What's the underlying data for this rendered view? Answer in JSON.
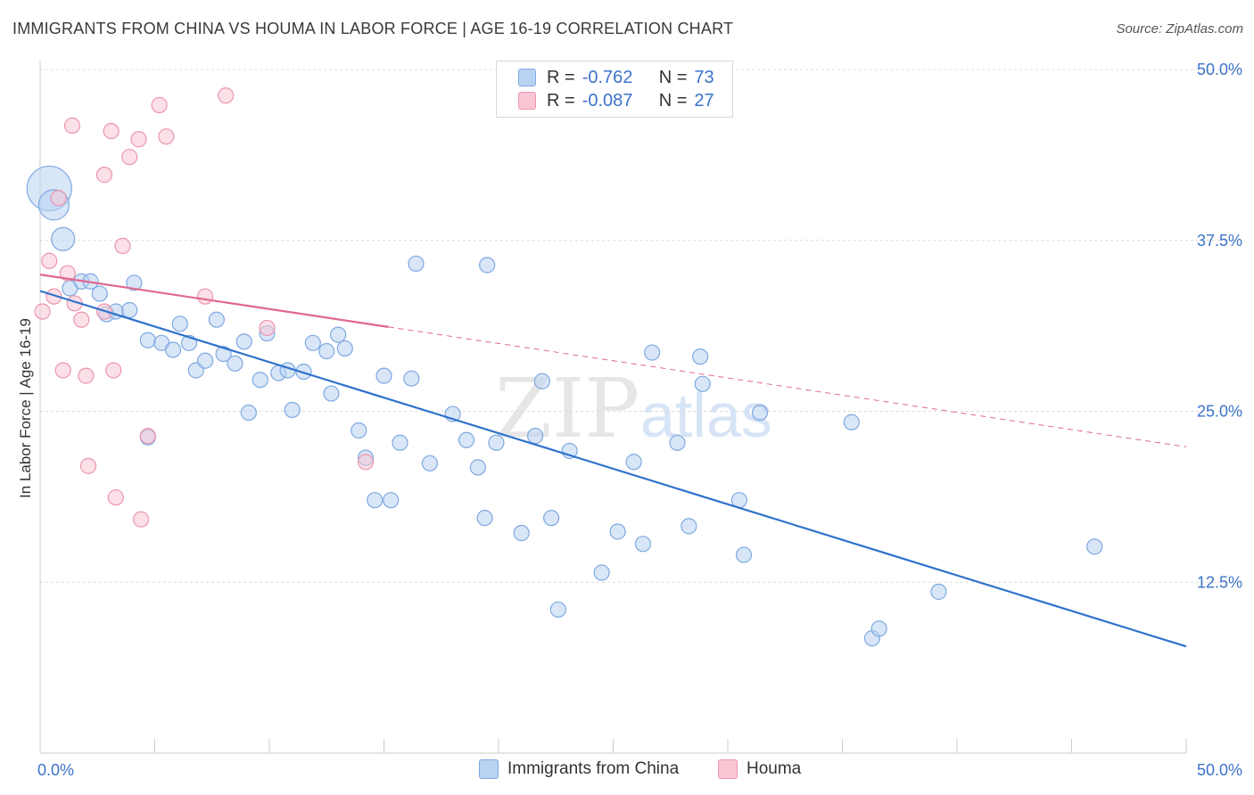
{
  "title": "IMMIGRANTS FROM CHINA VS HOUMA IN LABOR FORCE | AGE 16-19 CORRELATION CHART",
  "source": "Source: ZipAtlas.com",
  "watermark": {
    "zip": "ZIP",
    "atlas": "atlas"
  },
  "legend": {
    "r_label": "R =",
    "n_label": "N =",
    "rows": [
      {
        "name": "Immigrants from China",
        "r": "-0.762",
        "n": "73",
        "color": "#b8d2f2",
        "edge": "#7fa9e0"
      },
      {
        "name": "Houma",
        "r": "-0.087",
        "n": "27",
        "color": "#f9c6d4",
        "edge": "#ec95ae"
      }
    ]
  },
  "chart_data": {
    "type": "scatter",
    "title": "IMMIGRANTS FROM CHINA VS HOUMA IN LABOR FORCE | AGE 16-19 CORRELATION CHART",
    "xlabel": "",
    "ylabel": "In Labor Force | Age 16-19",
    "xlim": [
      0,
      50
    ],
    "ylim": [
      0,
      50
    ],
    "x_tick_labels": [
      "0.0%",
      "50.0%"
    ],
    "y_ticks": [
      12.5,
      25.0,
      37.5,
      50.0
    ],
    "y_tick_labels": [
      "12.5%",
      "25.0%",
      "37.5%",
      "50.0%"
    ],
    "grid": true,
    "series": [
      {
        "name": "Immigrants from China",
        "color": "#b8d2f2",
        "edge": "#7fa9e0",
        "line_color": "#2f72cc",
        "trend": {
          "x": [
            0,
            50
          ],
          "y": [
            33.8,
            7.8
          ],
          "dashed_from": null
        },
        "points": [
          {
            "x": 0.4,
            "y": 41.3,
            "big": 2
          },
          {
            "x": 0.6,
            "y": 40.1,
            "big": 1
          },
          {
            "x": 1.0,
            "y": 37.6,
            "big": 0.5
          },
          {
            "x": 1.3,
            "y": 34.0
          },
          {
            "x": 1.8,
            "y": 34.5
          },
          {
            "x": 2.2,
            "y": 34.5
          },
          {
            "x": 2.6,
            "y": 33.6
          },
          {
            "x": 2.9,
            "y": 32.1
          },
          {
            "x": 3.3,
            "y": 32.3
          },
          {
            "x": 3.9,
            "y": 32.4
          },
          {
            "x": 4.1,
            "y": 34.4
          },
          {
            "x": 4.7,
            "y": 30.2
          },
          {
            "x": 5.3,
            "y": 30.0
          },
          {
            "x": 5.8,
            "y": 29.5
          },
          {
            "x": 6.1,
            "y": 31.4
          },
          {
            "x": 6.5,
            "y": 30.0
          },
          {
            "x": 6.8,
            "y": 28.0
          },
          {
            "x": 7.2,
            "y": 28.7
          },
          {
            "x": 7.7,
            "y": 31.7
          },
          {
            "x": 8.0,
            "y": 29.2
          },
          {
            "x": 8.5,
            "y": 28.5
          },
          {
            "x": 8.9,
            "y": 30.1
          },
          {
            "x": 9.1,
            "y": 24.9
          },
          {
            "x": 9.6,
            "y": 27.3
          },
          {
            "x": 9.9,
            "y": 30.7
          },
          {
            "x": 10.4,
            "y": 27.8
          },
          {
            "x": 10.8,
            "y": 28.0
          },
          {
            "x": 11.0,
            "y": 25.1
          },
          {
            "x": 11.5,
            "y": 27.9
          },
          {
            "x": 11.9,
            "y": 30.0
          },
          {
            "x": 12.5,
            "y": 29.4
          },
          {
            "x": 12.7,
            "y": 26.3
          },
          {
            "x": 13.0,
            "y": 30.6
          },
          {
            "x": 13.3,
            "y": 29.6
          },
          {
            "x": 13.9,
            "y": 23.6
          },
          {
            "x": 14.2,
            "y": 21.6
          },
          {
            "x": 14.6,
            "y": 18.5
          },
          {
            "x": 15.0,
            "y": 27.6
          },
          {
            "x": 15.3,
            "y": 18.5
          },
          {
            "x": 15.7,
            "y": 22.7
          },
          {
            "x": 16.2,
            "y": 27.4
          },
          {
            "x": 16.4,
            "y": 35.8
          },
          {
            "x": 17.0,
            "y": 21.2
          },
          {
            "x": 18.0,
            "y": 24.8
          },
          {
            "x": 18.6,
            "y": 22.9
          },
          {
            "x": 19.1,
            "y": 20.9
          },
          {
            "x": 19.4,
            "y": 17.2
          },
          {
            "x": 19.5,
            "y": 35.7
          },
          {
            "x": 19.9,
            "y": 22.7
          },
          {
            "x": 21.0,
            "y": 16.1
          },
          {
            "x": 21.6,
            "y": 23.2
          },
          {
            "x": 21.9,
            "y": 27.2
          },
          {
            "x": 22.3,
            "y": 17.2
          },
          {
            "x": 22.6,
            "y": 10.5
          },
          {
            "x": 23.1,
            "y": 22.1
          },
          {
            "x": 24.5,
            "y": 13.2
          },
          {
            "x": 25.2,
            "y": 16.2
          },
          {
            "x": 25.9,
            "y": 21.3
          },
          {
            "x": 26.3,
            "y": 15.3
          },
          {
            "x": 26.7,
            "y": 29.3
          },
          {
            "x": 27.8,
            "y": 22.7
          },
          {
            "x": 28.3,
            "y": 16.6
          },
          {
            "x": 28.8,
            "y": 29.0
          },
          {
            "x": 28.9,
            "y": 27.0
          },
          {
            "x": 30.5,
            "y": 18.5
          },
          {
            "x": 30.7,
            "y": 14.5
          },
          {
            "x": 31.4,
            "y": 24.9
          },
          {
            "x": 35.4,
            "y": 24.2
          },
          {
            "x": 36.3,
            "y": 8.4
          },
          {
            "x": 36.6,
            "y": 9.1
          },
          {
            "x": 39.2,
            "y": 11.8
          },
          {
            "x": 46.0,
            "y": 15.1
          },
          {
            "x": 4.7,
            "y": 23.1
          }
        ]
      },
      {
        "name": "Houma",
        "color": "#f9c6d4",
        "edge": "#ec95ae",
        "line_color": "#e0688f",
        "trend": {
          "x": [
            0,
            50
          ],
          "y": [
            35.0,
            22.4
          ],
          "dashed_from": 15.2
        },
        "points": [
          {
            "x": 0.1,
            "y": 32.3
          },
          {
            "x": 0.4,
            "y": 36.0
          },
          {
            "x": 0.6,
            "y": 33.4
          },
          {
            "x": 0.8,
            "y": 40.6
          },
          {
            "x": 1.0,
            "y": 28.0
          },
          {
            "x": 1.2,
            "y": 35.1
          },
          {
            "x": 1.4,
            "y": 45.9
          },
          {
            "x": 1.5,
            "y": 32.9
          },
          {
            "x": 1.8,
            "y": 31.7
          },
          {
            "x": 2.0,
            "y": 27.6
          },
          {
            "x": 2.1,
            "y": 21.0
          },
          {
            "x": 2.8,
            "y": 32.3
          },
          {
            "x": 2.8,
            "y": 42.3
          },
          {
            "x": 3.1,
            "y": 45.5
          },
          {
            "x": 3.2,
            "y": 28.0
          },
          {
            "x": 3.3,
            "y": 18.7
          },
          {
            "x": 3.6,
            "y": 37.1
          },
          {
            "x": 3.9,
            "y": 43.6
          },
          {
            "x": 4.3,
            "y": 44.9
          },
          {
            "x": 4.4,
            "y": 17.1
          },
          {
            "x": 4.7,
            "y": 23.2
          },
          {
            "x": 5.2,
            "y": 47.4
          },
          {
            "x": 5.5,
            "y": 45.1
          },
          {
            "x": 7.2,
            "y": 33.4
          },
          {
            "x": 8.1,
            "y": 48.1
          },
          {
            "x": 9.9,
            "y": 31.1
          },
          {
            "x": 14.2,
            "y": 21.3
          }
        ]
      }
    ]
  }
}
